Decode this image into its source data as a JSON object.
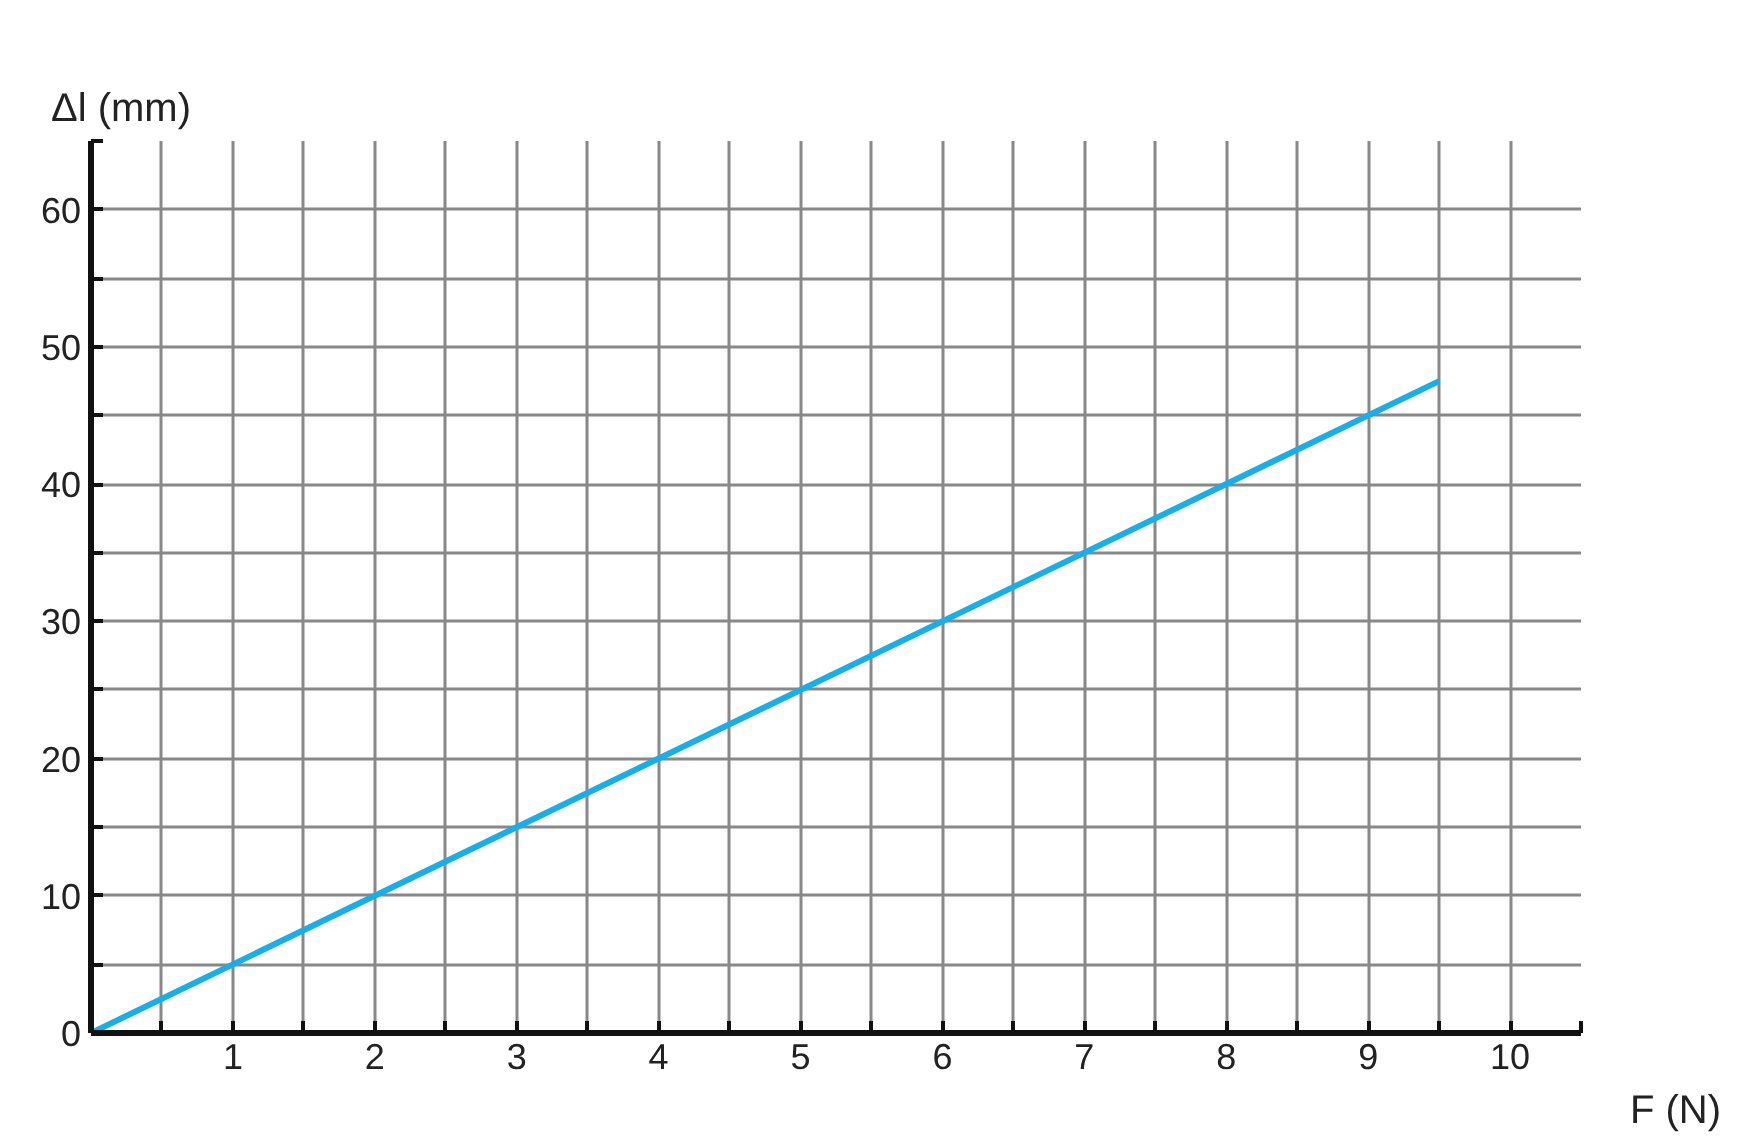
{
  "chart_data": {
    "type": "line",
    "xlabel": "F (N)",
    "ylabel": "Δl (mm)",
    "x": [
      0,
      9.5
    ],
    "series": [
      {
        "color": "#1aaee8",
        "values": [
          0,
          47.5
        ]
      }
    ],
    "xlim": [
      0,
      10.5
    ],
    "ylim": [
      0,
      65
    ],
    "xticks": [
      {
        "value": 0,
        "label": null
      },
      {
        "value": 0.5,
        "label": null
      },
      1,
      {
        "value": 1.5,
        "label": null
      },
      2,
      {
        "value": 2.5,
        "label": null
      },
      3,
      {
        "value": 3.5,
        "label": null
      },
      4,
      {
        "value": 4.5,
        "label": null
      },
      5,
      {
        "value": 5.5,
        "label": null
      },
      6,
      {
        "value": 6.5,
        "label": null
      },
      7,
      {
        "value": 7.5,
        "label": null
      },
      8,
      {
        "value": 8.5,
        "label": null
      },
      9,
      {
        "value": 9.5,
        "label": null
      },
      10,
      {
        "value": 10.5,
        "label": null
      }
    ],
    "yticks": [
      0,
      {
        "value": 5,
        "label": null
      },
      10,
      {
        "value": 15,
        "label": null
      },
      20,
      {
        "value": 25,
        "label": null
      },
      30,
      {
        "value": 35,
        "label": null
      },
      40,
      {
        "value": 45,
        "label": null
      },
      50,
      {
        "value": 55,
        "label": null
      },
      60,
      {
        "value": 65,
        "label": null
      }
    ],
    "grid": true,
    "marker": "none",
    "line_style": "solid"
  }
}
